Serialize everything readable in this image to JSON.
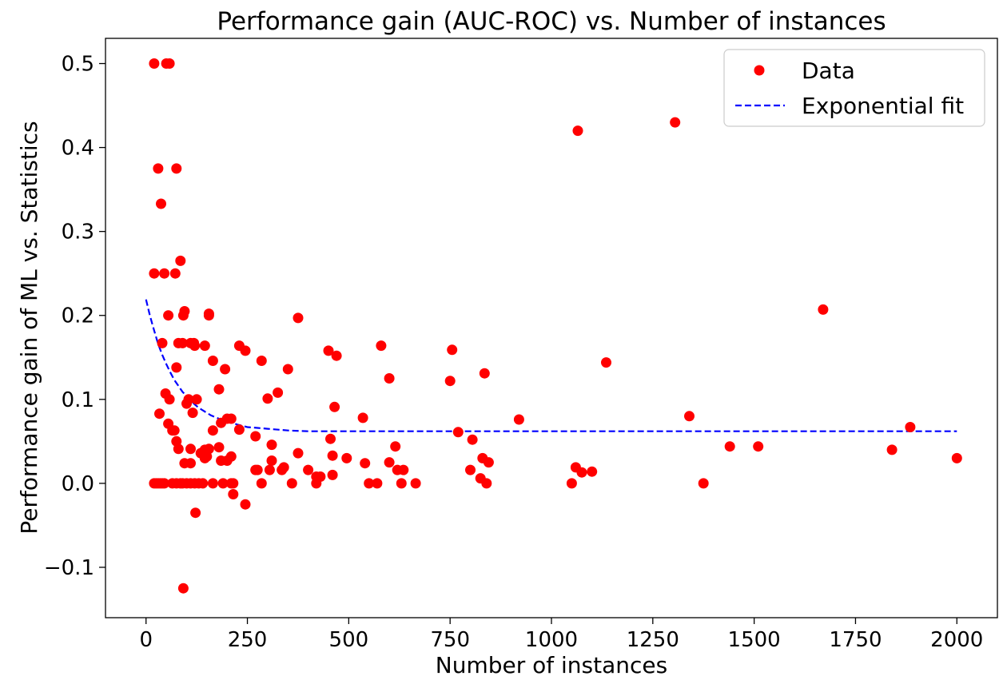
{
  "chart_data": {
    "type": "scatter",
    "title": "Performance gain (AUC-ROC) vs. Number of instances",
    "xlabel": "Number of instances",
    "ylabel": "Performance gain of ML vs. Statistics",
    "xlim": [
      -100,
      2100
    ],
    "ylim": [
      -0.16,
      0.53
    ],
    "xticks": [
      0,
      250,
      500,
      750,
      1000,
      1250,
      1500,
      1750,
      2000
    ],
    "yticks": [
      -0.1,
      0.0,
      0.1,
      0.2,
      0.3,
      0.4,
      0.5
    ],
    "ytick_labels": [
      "−0.1",
      "0.0",
      "0.1",
      "0.2",
      "0.3",
      "0.4",
      "0.5"
    ],
    "grid": false,
    "legend_position": "top-right",
    "colors": {
      "data": "#ff0000",
      "fit": "#0000ff"
    },
    "series": [
      {
        "name": "Data",
        "kind": "points",
        "points": [
          [
            20,
            0.5
          ],
          [
            50,
            0.5
          ],
          [
            58,
            0.5
          ],
          [
            30,
            0.375
          ],
          [
            75,
            0.375
          ],
          [
            37,
            0.333
          ],
          [
            20,
            0.25
          ],
          [
            45,
            0.25
          ],
          [
            72,
            0.25
          ],
          [
            85,
            0.265
          ],
          [
            55,
            0.2
          ],
          [
            92,
            0.2
          ],
          [
            95,
            0.205
          ],
          [
            155,
            0.2
          ],
          [
            155,
            0.202
          ],
          [
            375,
            0.197
          ],
          [
            40,
            0.167
          ],
          [
            80,
            0.167
          ],
          [
            90,
            0.167
          ],
          [
            110,
            0.167
          ],
          [
            118,
            0.167
          ],
          [
            120,
            0.164
          ],
          [
            145,
            0.164
          ],
          [
            75,
            0.138
          ],
          [
            165,
            0.146
          ],
          [
            195,
            0.136
          ],
          [
            230,
            0.164
          ],
          [
            245,
            0.158
          ],
          [
            285,
            0.146
          ],
          [
            350,
            0.136
          ],
          [
            450,
            0.158
          ],
          [
            470,
            0.152
          ],
          [
            48,
            0.107
          ],
          [
            100,
            0.095
          ],
          [
            105,
            0.1
          ],
          [
            125,
            0.1
          ],
          [
            180,
            0.112
          ],
          [
            300,
            0.101
          ],
          [
            325,
            0.108
          ],
          [
            33,
            0.083
          ],
          [
            58,
            0.1
          ],
          [
            115,
            0.084
          ],
          [
            185,
            0.072
          ],
          [
            200,
            0.077
          ],
          [
            210,
            0.077
          ],
          [
            230,
            0.064
          ],
          [
            55,
            0.071
          ],
          [
            65,
            0.063
          ],
          [
            70,
            0.063
          ],
          [
            75,
            0.05
          ],
          [
            80,
            0.041
          ],
          [
            110,
            0.041
          ],
          [
            135,
            0.036
          ],
          [
            145,
            0.04
          ],
          [
            155,
            0.041
          ],
          [
            165,
            0.063
          ],
          [
            180,
            0.043
          ],
          [
            270,
            0.056
          ],
          [
            310,
            0.046
          ],
          [
            95,
            0.024
          ],
          [
            110,
            0.024
          ],
          [
            145,
            0.03
          ],
          [
            150,
            0.032
          ],
          [
            185,
            0.027
          ],
          [
            200,
            0.027
          ],
          [
            210,
            0.032
          ],
          [
            270,
            0.016
          ],
          [
            275,
            0.016
          ],
          [
            305,
            0.016
          ],
          [
            310,
            0.027
          ],
          [
            335,
            0.016
          ],
          [
            340,
            0.019
          ],
          [
            375,
            0.036
          ],
          [
            400,
            0.016
          ],
          [
            420,
            0.008
          ],
          [
            430,
            0.008
          ],
          [
            460,
            0.01
          ],
          [
            460,
            0.033
          ],
          [
            495,
            0.03
          ],
          [
            540,
            0.024
          ],
          [
            600,
            0.025
          ],
          [
            615,
            0.044
          ],
          [
            620,
            0.016
          ],
          [
            635,
            0.016
          ],
          [
            20,
            0
          ],
          [
            25,
            0
          ],
          [
            30,
            0
          ],
          [
            35,
            0
          ],
          [
            40,
            0
          ],
          [
            45,
            0
          ],
          [
            65,
            0
          ],
          [
            75,
            0
          ],
          [
            85,
            0
          ],
          [
            90,
            0
          ],
          [
            100,
            0
          ],
          [
            110,
            0
          ],
          [
            120,
            0
          ],
          [
            130,
            0
          ],
          [
            140,
            0
          ],
          [
            165,
            0
          ],
          [
            190,
            0
          ],
          [
            210,
            0
          ],
          [
            215,
            0
          ],
          [
            285,
            0
          ],
          [
            360,
            0
          ],
          [
            420,
            0
          ],
          [
            550,
            0
          ],
          [
            570,
            0
          ],
          [
            630,
            0
          ],
          [
            665,
            0
          ],
          [
            215,
            -0.013
          ],
          [
            245,
            -0.025
          ],
          [
            122,
            -0.035
          ],
          [
            92,
            -0.125
          ],
          [
            455,
            0.053
          ],
          [
            465,
            0.091
          ],
          [
            535,
            0.078
          ],
          [
            580,
            0.164
          ],
          [
            600,
            0.125
          ],
          [
            750,
            0.122
          ],
          [
            755,
            0.159
          ],
          [
            770,
            0.061
          ],
          [
            800,
            0.016
          ],
          [
            805,
            0.052
          ],
          [
            825,
            0.006
          ],
          [
            830,
            0.03
          ],
          [
            835,
            0.131
          ],
          [
            840,
            0
          ],
          [
            845,
            0.025
          ],
          [
            920,
            0.076
          ],
          [
            1050,
            0
          ],
          [
            1060,
            0.019
          ],
          [
            1065,
            0.42
          ],
          [
            1075,
            0.013
          ],
          [
            1100,
            0.014
          ],
          [
            1135,
            0.144
          ],
          [
            1305,
            0.43
          ],
          [
            1340,
            0.08
          ],
          [
            1375,
            0
          ],
          [
            1440,
            0.044
          ],
          [
            1510,
            0.044
          ],
          [
            1670,
            0.207
          ],
          [
            1840,
            0.04
          ],
          [
            1885,
            0.067
          ],
          [
            2000,
            0.03
          ]
        ]
      },
      {
        "name": "Exponential fit",
        "kind": "line",
        "style": "dashed",
        "x": [
          0,
          10,
          20,
          30,
          40,
          50,
          60,
          70,
          80,
          90,
          100,
          110,
          120,
          130,
          140,
          150,
          160,
          170,
          180,
          190,
          200,
          225,
          250,
          275,
          300,
          350,
          400,
          500,
          600,
          800,
          1000,
          1250,
          1500,
          1750,
          2000
        ],
        "y": [
          0.219,
          0.199,
          0.182,
          0.166,
          0.153,
          0.142,
          0.132,
          0.123,
          0.116,
          0.109,
          0.104,
          0.099,
          0.094,
          0.09,
          0.087,
          0.084,
          0.081,
          0.079,
          0.077,
          0.075,
          0.074,
          0.07,
          0.067,
          0.066,
          0.065,
          0.063,
          0.062,
          0.062,
          0.062,
          0.062,
          0.062,
          0.062,
          0.062,
          0.062,
          0.062
        ]
      }
    ]
  }
}
